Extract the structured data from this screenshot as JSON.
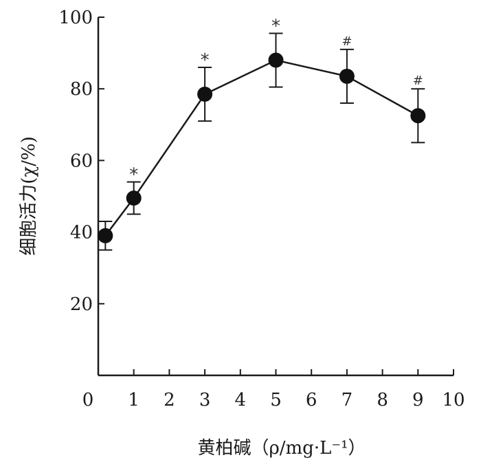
{
  "chart_data": {
    "type": "line",
    "xlabel": "黄柏碱（ρ/mg·L⁻¹）",
    "ylabel": "细胞活力(χ/%)",
    "xlim": [
      0,
      10
    ],
    "ylim": [
      0,
      100
    ],
    "x_ticks": [
      "0",
      "1",
      "2",
      "3",
      "4",
      "5",
      "6",
      "7",
      "8",
      "9",
      "10"
    ],
    "y_ticks": [
      "20",
      "40",
      "60",
      "80",
      "100"
    ],
    "grid": false,
    "series": [
      {
        "x": [
          0.2,
          1,
          3,
          5,
          7,
          9
        ],
        "y": [
          39,
          49.5,
          78.5,
          88,
          83.5,
          72.5
        ],
        "error": [
          4,
          4.5,
          7.5,
          7.5,
          7.5,
          7.5
        ],
        "annotations": [
          "",
          "*",
          "*",
          "*",
          "#",
          "#"
        ],
        "color": "#111111"
      }
    ]
  }
}
